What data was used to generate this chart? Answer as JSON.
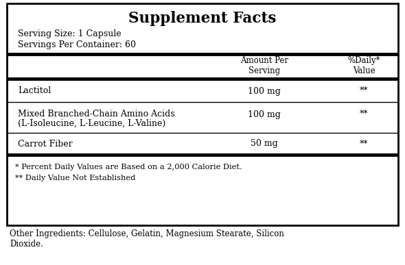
{
  "title": "Supplement Facts",
  "serving_size": "Serving Size: 1 Capsule",
  "servings_per_container": "Servings Per Container: 60",
  "col_header1": "Amount Per\nServing",
  "col_header2": "%Daily*\nValue",
  "row1_name": "Lactitol",
  "row1_amt": "100 mg",
  "row1_dv": "**",
  "row2_name1": "Mixed Branched-Chain Amino Acids",
  "row2_name2": "(L-Isoleucine, L-Leucine, L-Valine)",
  "row2_amt": "100 mg",
  "row2_dv": "**",
  "row3_name": "Carrot Fiber",
  "row3_amt": "50 mg",
  "row3_dv": "**",
  "footnote1": "* Percent Daily Values are Based on a 2,000 Calorie Diet.",
  "footnote2": "** Daily Value Not Established",
  "other_ingredients1": "Other Ingredients: Cellulose, Gelatin, Magnesium Stearate, Silicon",
  "other_ingredients2": "Dioxide.",
  "bg_color": "#ffffff",
  "border_color": "#000000",
  "text_color": "#000000",
  "figsize": [
    5.9,
    3.87
  ],
  "dpi": 100
}
